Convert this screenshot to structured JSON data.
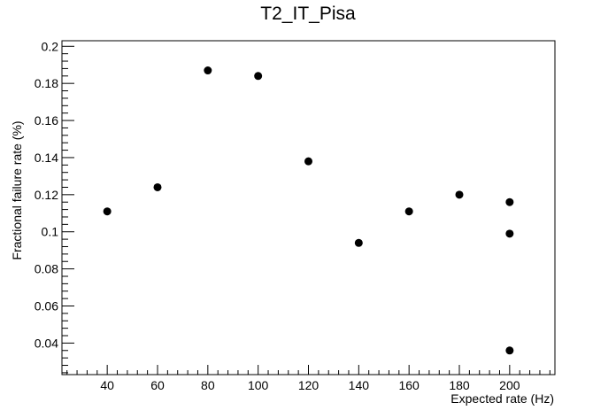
{
  "chart_data": {
    "type": "scatter",
    "title": "T2_IT_Pisa",
    "xlabel": "Expected rate (Hz)",
    "ylabel": "Fractional failure rate (%)",
    "xlim": [
      22,
      218
    ],
    "ylim": [
      0.023,
      0.203
    ],
    "xticks": [
      40,
      60,
      80,
      100,
      120,
      140,
      160,
      180,
      200
    ],
    "xtick_labels": [
      "40",
      "60",
      "80",
      "100",
      "120",
      "140",
      "160",
      "180",
      "200"
    ],
    "yticks": [
      0.04,
      0.06,
      0.08,
      0.1,
      0.12,
      0.14,
      0.16,
      0.18,
      0.2
    ],
    "ytick_labels": [
      "0.04",
      "0.06",
      "0.08",
      "0.1",
      "0.12",
      "0.14",
      "0.16",
      "0.18",
      "0.2"
    ],
    "grid": false,
    "points": [
      {
        "x": 40,
        "y": 0.111
      },
      {
        "x": 60,
        "y": 0.124
      },
      {
        "x": 80,
        "y": 0.187
      },
      {
        "x": 100,
        "y": 0.184
      },
      {
        "x": 120,
        "y": 0.138
      },
      {
        "x": 140,
        "y": 0.094
      },
      {
        "x": 160,
        "y": 0.111
      },
      {
        "x": 180,
        "y": 0.12
      },
      {
        "x": 200,
        "y": 0.116
      },
      {
        "x": 200,
        "y": 0.099
      },
      {
        "x": 200,
        "y": 0.036
      }
    ],
    "marker_color": "#000000"
  }
}
